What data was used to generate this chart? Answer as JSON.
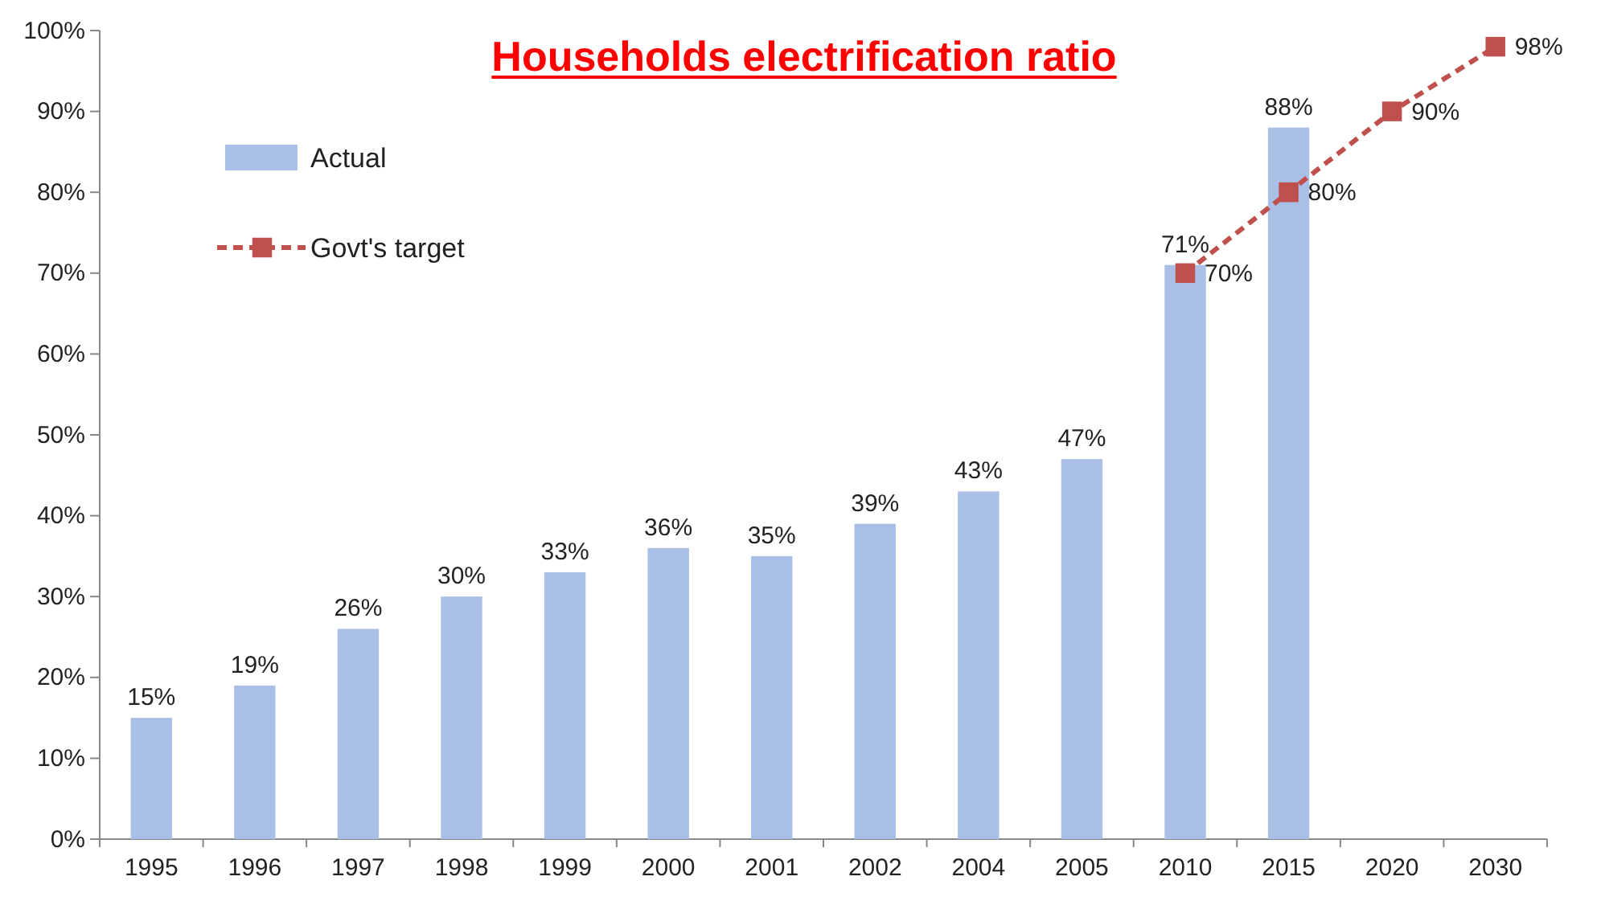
{
  "chart_data": {
    "type": "bar",
    "title": "Households electrification ratio",
    "categories": [
      "1995",
      "1996",
      "1997",
      "1998",
      "1999",
      "2000",
      "2001",
      "2002",
      "2004",
      "2005",
      "2010",
      "2015",
      "2020",
      "2030"
    ],
    "series": [
      {
        "name": "Actual",
        "color": "#a9bfe6",
        "values": [
          15,
          19,
          26,
          30,
          33,
          36,
          35,
          39,
          43,
          47,
          71,
          88,
          null,
          null
        ],
        "value_labels": [
          "15%",
          "19%",
          "26%",
          "30%",
          "33%",
          "36%",
          "35%",
          "39%",
          "43%",
          "47%",
          "71%",
          "88%",
          null,
          null
        ]
      },
      {
        "name": "Govt's target",
        "type": "line",
        "color": "#c0504d",
        "marker": "square",
        "line_style": "dashed",
        "values": [
          null,
          null,
          null,
          null,
          null,
          null,
          null,
          null,
          null,
          null,
          70,
          80,
          90,
          98
        ],
        "value_labels": [
          null,
          null,
          null,
          null,
          null,
          null,
          null,
          null,
          null,
          null,
          "70%",
          "80%",
          "90%",
          "98%"
        ]
      }
    ],
    "ylim": [
      0,
      100
    ],
    "yticks": [
      {
        "value": 0,
        "label": "0%"
      },
      {
        "value": 10,
        "label": "10%"
      },
      {
        "value": 20,
        "label": "20%"
      },
      {
        "value": 30,
        "label": "30%"
      },
      {
        "value": 40,
        "label": "40%"
      },
      {
        "value": 50,
        "label": "50%"
      },
      {
        "value": 60,
        "label": "60%"
      },
      {
        "value": 70,
        "label": "70%"
      },
      {
        "value": 80,
        "label": "80%"
      },
      {
        "value": 90,
        "label": "90%"
      },
      {
        "value": 100,
        "label": "100%"
      }
    ],
    "grid": false,
    "legend": "top left"
  }
}
